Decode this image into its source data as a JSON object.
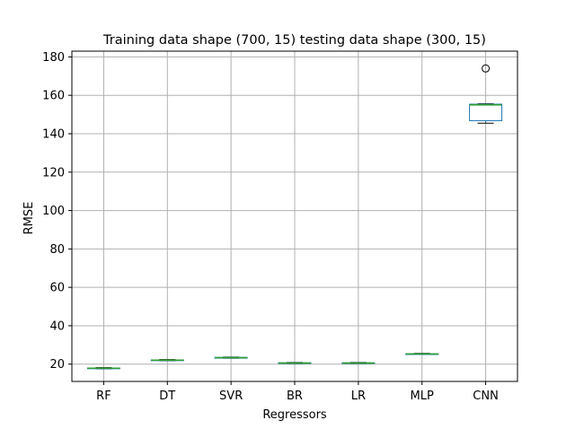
{
  "chart_data": {
    "type": "box",
    "title": "Training data shape (700, 15) testing data shape (300, 15)",
    "xlabel": "Regressors",
    "ylabel": "RMSE",
    "ylim": [
      11,
      183
    ],
    "yticks": [
      20,
      40,
      60,
      80,
      100,
      120,
      140,
      160,
      180
    ],
    "grid": true,
    "categories": [
      "RF",
      "DT",
      "SVR",
      "BR",
      "LR",
      "MLP",
      "CNN"
    ],
    "boxes": [
      {
        "name": "RF",
        "whislo": 17.6,
        "q1": 17.8,
        "med": 17.9,
        "q3": 18.0,
        "whishi": 18.2,
        "fliers": []
      },
      {
        "name": "DT",
        "whislo": 21.8,
        "q1": 22.0,
        "med": 22.1,
        "q3": 22.2,
        "whishi": 22.4,
        "fliers": []
      },
      {
        "name": "SVR",
        "whislo": 23.1,
        "q1": 23.3,
        "med": 23.4,
        "q3": 23.5,
        "whishi": 23.7,
        "fliers": []
      },
      {
        "name": "BR",
        "whislo": 20.3,
        "q1": 20.5,
        "med": 20.6,
        "q3": 20.7,
        "whishi": 20.9,
        "fliers": []
      },
      {
        "name": "LR",
        "whislo": 20.3,
        "q1": 20.5,
        "med": 20.6,
        "q3": 20.7,
        "whishi": 20.9,
        "fliers": []
      },
      {
        "name": "MLP",
        "whislo": 25.0,
        "q1": 25.2,
        "med": 25.3,
        "q3": 25.4,
        "whishi": 25.6,
        "fliers": []
      },
      {
        "name": "CNN",
        "whislo": 145.5,
        "q1": 146.8,
        "med": 155.0,
        "q3": 155.4,
        "whishi": 155.6,
        "fliers": [
          174.0
        ]
      }
    ],
    "colors": {
      "box": "#1f77b4",
      "median": "#2ca02c",
      "whisker": "#1f77b4",
      "grid": "#b0b0b0",
      "axis": "#000000"
    }
  }
}
